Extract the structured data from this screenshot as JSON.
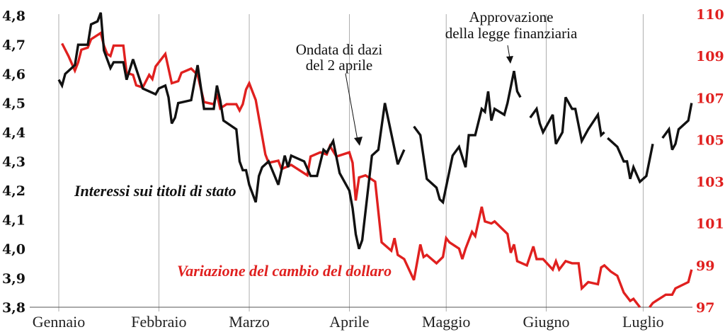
{
  "chart_data": {
    "type": "line",
    "title": "",
    "x_tick_labels": [
      "Gennaio",
      "Febbraio",
      "Marzo",
      "Aprile",
      "Maggio",
      "Giugno",
      "Luglio"
    ],
    "x_tick_dates": [
      "01-01",
      "02-01",
      "03-01",
      "04-01",
      "05-01",
      "06-01",
      "07-01"
    ],
    "y_left": {
      "ticks": [
        "4,8",
        "4,7",
        "4,6",
        "4,5",
        "4,4",
        "4,3",
        "4,2",
        "4,1",
        "4,0",
        "3,9",
        "3,8"
      ],
      "range": [
        3.8,
        4.8
      ]
    },
    "y_right": {
      "ticks": [
        "110",
        "109",
        "107",
        "105",
        "103",
        "101",
        "99",
        "97"
      ],
      "range": [
        97,
        110
      ],
      "color": "#e0201f"
    },
    "grid": "vertical at month starts",
    "annotations": [
      {
        "lines": [
          "Ondata di dazi",
          "del 2 aprile"
        ],
        "target_date": "04-03"
      },
      {
        "lines": [
          "Approvazione",
          "della legge finanziaria"
        ],
        "target_date": "05-22"
      }
    ],
    "series": [
      {
        "name": "Interessi sui titoli di stato",
        "axis": "left",
        "color": "#111111",
        "points": [
          [
            "01-01",
            4.58
          ],
          [
            "01-02",
            4.56
          ],
          [
            "01-03",
            4.6
          ],
          [
            "01-06",
            4.63
          ],
          [
            "01-07",
            4.7
          ],
          [
            "01-10",
            4.7
          ],
          [
            "01-11",
            4.77
          ],
          [
            "01-13",
            4.78
          ],
          [
            "01-14",
            4.81
          ],
          [
            "01-15",
            4.68
          ],
          [
            "01-17",
            4.62
          ],
          [
            "01-18",
            4.64
          ],
          [
            "01-21",
            4.64
          ],
          [
            "01-22",
            4.58
          ],
          [
            "01-24",
            4.65
          ],
          [
            "01-27",
            4.55
          ],
          [
            "01-29",
            4.54
          ],
          [
            "01-31",
            4.53
          ],
          [
            "02-01",
            4.55
          ],
          [
            "02-03",
            4.56
          ],
          [
            "02-04",
            4.52
          ],
          [
            "02-05",
            4.43
          ],
          [
            "02-06",
            4.45
          ],
          [
            "02-07",
            4.5
          ],
          [
            "02-11",
            4.51
          ],
          [
            "02-13",
            4.63
          ],
          [
            "02-15",
            4.48
          ],
          [
            "02-18",
            4.48
          ],
          [
            "02-19",
            4.56
          ],
          [
            "02-20",
            4.51
          ],
          [
            "02-21",
            4.44
          ],
          [
            "02-25",
            4.41
          ],
          [
            "02-26",
            4.3
          ],
          [
            "02-27",
            4.27
          ],
          [
            "02-28",
            4.27
          ],
          [
            "03-01",
            4.22
          ],
          [
            "03-03",
            4.16
          ],
          [
            "03-04",
            4.25
          ],
          [
            "03-05",
            4.28
          ],
          [
            "03-07",
            4.3
          ],
          [
            "03-10",
            4.22
          ],
          [
            "03-12",
            4.32
          ],
          [
            "03-13",
            4.28
          ],
          [
            "03-14",
            4.32
          ],
          [
            "03-18",
            4.3
          ],
          [
            "03-20",
            4.25
          ],
          [
            "03-22",
            4.25
          ],
          [
            "03-24",
            4.34
          ],
          [
            "03-25",
            4.33
          ],
          [
            "03-27",
            4.37
          ],
          [
            "03-29",
            4.26
          ],
          [
            "04-01",
            4.2
          ],
          [
            "04-02",
            4.14
          ],
          [
            "04-03",
            4.05
          ],
          [
            "04-04",
            4.0
          ],
          [
            "04-05",
            4.03
          ],
          [
            "04-08",
            4.32
          ],
          [
            "04-10",
            4.34
          ],
          [
            "04-12",
            4.5
          ],
          [
            "04-16",
            4.29
          ],
          [
            "04-18",
            4.34
          ],
          null,
          [
            "04-21",
            4.42
          ],
          [
            "04-23",
            4.39
          ],
          [
            "04-25",
            4.24
          ],
          [
            "04-28",
            4.21
          ],
          [
            "04-29",
            4.17
          ],
          [
            "04-30",
            4.16
          ],
          [
            "05-03",
            4.32
          ],
          [
            "05-05",
            4.35
          ],
          [
            "05-07",
            4.28
          ],
          [
            "05-08",
            4.39
          ],
          [
            "05-10",
            4.39
          ],
          [
            "05-12",
            4.48
          ],
          [
            "05-13",
            4.47
          ],
          [
            "05-14",
            4.54
          ],
          [
            "05-15",
            4.44
          ],
          [
            "05-16",
            4.48
          ],
          [
            "05-19",
            4.46
          ],
          [
            "05-20",
            4.5
          ],
          [
            "05-22",
            4.61
          ],
          [
            "05-23",
            4.54
          ],
          [
            "05-24",
            4.52
          ],
          null,
          [
            "05-27",
            4.45
          ],
          [
            "05-29",
            4.48
          ],
          [
            "05-30",
            4.43
          ],
          [
            "05-31",
            4.4
          ],
          [
            "06-03",
            4.46
          ],
          [
            "06-04",
            4.36
          ],
          [
            "06-06",
            4.4
          ],
          [
            "06-07",
            4.52
          ],
          [
            "06-09",
            4.48
          ],
          [
            "06-10",
            4.48
          ],
          [
            "06-12",
            4.37
          ],
          [
            "06-14",
            4.41
          ],
          [
            "06-17",
            4.46
          ],
          [
            "06-18",
            4.39
          ],
          [
            "06-19",
            4.4
          ],
          null,
          [
            "06-20",
            4.38
          ],
          [
            "06-23",
            4.35
          ],
          [
            "06-25",
            4.3
          ],
          [
            "06-26",
            4.3
          ],
          [
            "06-27",
            4.24
          ],
          [
            "06-28",
            4.28
          ],
          [
            "06-30",
            4.23
          ],
          [
            "07-02",
            4.25
          ],
          [
            "07-04",
            4.36
          ],
          null,
          [
            "07-07",
            4.38
          ],
          [
            "07-09",
            4.41
          ],
          [
            "07-10",
            4.34
          ],
          [
            "07-11",
            4.36
          ],
          [
            "07-12",
            4.41
          ],
          [
            "07-15",
            4.44
          ],
          [
            "07-16",
            4.5
          ]
        ]
      },
      {
        "name": "Variazione del cambio del dollaro",
        "axis": "right",
        "color": "#e0201f",
        "points": [
          [
            "01-02",
            109.6
          ],
          [
            "01-04",
            109.0
          ],
          [
            "01-06",
            108.3
          ],
          [
            "01-07",
            108.7
          ],
          [
            "01-08",
            109.3
          ],
          [
            "01-10",
            109.4
          ],
          [
            "01-11",
            109.8
          ],
          [
            "01-14",
            110.1
          ],
          [
            "01-15",
            109.5
          ],
          [
            "01-16",
            109.1
          ],
          [
            "01-17",
            109.0
          ],
          [
            "01-18",
            109.5
          ],
          [
            "01-21",
            109.5
          ],
          [
            "01-22",
            108.2
          ],
          [
            "01-24",
            108.1
          ],
          [
            "01-25",
            107.6
          ],
          [
            "01-27",
            107.5
          ],
          [
            "01-29",
            108.1
          ],
          [
            "01-30",
            107.9
          ],
          [
            "01-31",
            108.5
          ],
          [
            "02-03",
            109.1
          ],
          [
            "02-05",
            107.7
          ],
          [
            "02-07",
            107.8
          ],
          [
            "02-08",
            108.2
          ],
          [
            "02-11",
            108.4
          ],
          [
            "02-13",
            108.1
          ],
          [
            "02-15",
            106.8
          ],
          [
            "02-18",
            106.7
          ],
          [
            "02-19",
            107.2
          ],
          [
            "02-20",
            106.5
          ],
          [
            "02-22",
            106.7
          ],
          [
            "02-25",
            106.7
          ],
          [
            "02-26",
            106.4
          ],
          [
            "02-27",
            106.7
          ],
          [
            "02-28",
            107.4
          ],
          [
            "03-01",
            107.7
          ],
          [
            "03-03",
            106.9
          ],
          [
            "03-06",
            104.3
          ],
          [
            "03-07",
            103.9
          ],
          [
            "03-10",
            104.0
          ],
          [
            "03-11",
            103.6
          ],
          [
            "03-14",
            103.8
          ],
          [
            "03-19",
            103.3
          ],
          [
            "03-20",
            104.2
          ],
          [
            "03-23",
            104.4
          ],
          [
            "03-25",
            104.3
          ],
          [
            "03-26",
            104.7
          ],
          [
            "03-28",
            104.2
          ],
          [
            "04-01",
            104.4
          ],
          [
            "04-02",
            103.9
          ],
          [
            "04-03",
            102.1
          ],
          [
            "04-04",
            103.2
          ],
          [
            "04-06",
            103.3
          ],
          [
            "04-09",
            103.0
          ],
          [
            "04-11",
            100.1
          ],
          [
            "04-14",
            99.7
          ],
          [
            "04-15",
            100.3
          ],
          [
            "04-16",
            99.5
          ],
          [
            "04-18",
            99.3
          ],
          [
            "04-21",
            98.3
          ],
          [
            "04-23",
            100.0
          ],
          [
            "04-24",
            99.4
          ],
          [
            "04-25",
            99.5
          ],
          [
            "04-28",
            99.1
          ],
          [
            "04-30",
            99.4
          ],
          [
            "05-01",
            100.3
          ],
          [
            "05-02",
            100.1
          ],
          [
            "05-05",
            99.8
          ],
          [
            "05-06",
            99.3
          ],
          [
            "05-07",
            99.8
          ],
          [
            "05-09",
            100.6
          ],
          [
            "05-10",
            100.4
          ],
          [
            "05-12",
            101.8
          ],
          [
            "05-13",
            101.1
          ],
          [
            "05-15",
            101.0
          ],
          [
            "05-16",
            101.1
          ],
          [
            "05-20",
            100.5
          ],
          [
            "05-21",
            99.6
          ],
          [
            "05-22",
            100.0
          ],
          [
            "05-23",
            99.2
          ],
          [
            "05-26",
            99.0
          ],
          [
            "05-28",
            99.9
          ],
          [
            "05-29",
            99.3
          ],
          [
            "05-31",
            99.3
          ],
          [
            "06-03",
            98.8
          ],
          [
            "06-04",
            99.2
          ],
          [
            "06-05",
            98.8
          ],
          [
            "06-07",
            99.2
          ],
          [
            "06-09",
            99.1
          ],
          [
            "06-11",
            99.1
          ],
          [
            "06-12",
            97.9
          ],
          [
            "06-14",
            98.2
          ],
          [
            "06-17",
            98.1
          ],
          [
            "06-18",
            98.9
          ],
          [
            "06-19",
            99.0
          ],
          [
            "06-21",
            98.7
          ],
          [
            "06-23",
            98.5
          ],
          [
            "06-25",
            97.7
          ],
          [
            "06-27",
            97.3
          ],
          [
            "06-28",
            97.4
          ],
          [
            "06-30",
            97.0
          ],
          null,
          [
            "07-03",
            97.0
          ],
          [
            "07-04",
            97.2
          ],
          [
            "07-05",
            97.3
          ],
          [
            "07-08",
            97.6
          ],
          [
            "07-10",
            97.6
          ],
          [
            "07-11",
            97.9
          ],
          [
            "07-15",
            98.2
          ],
          [
            "07-16",
            98.8
          ]
        ]
      }
    ]
  }
}
